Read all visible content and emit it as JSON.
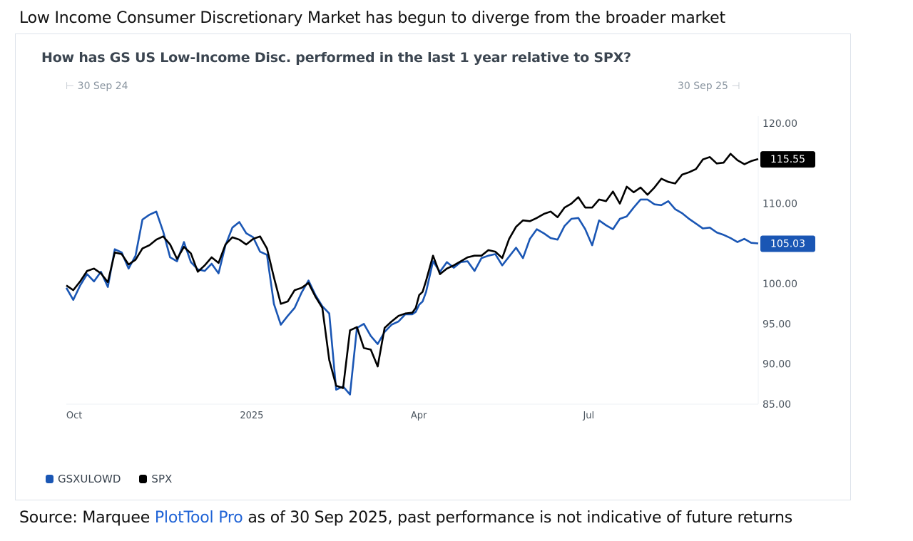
{
  "headline": "Low Income Consumer Discretionary Market has begun to diverge from the broader market",
  "card": {
    "title": "How has GS US Low-Income Disc. performed in the last 1 year relative to SPX?",
    "range_start": "30 Sep 24",
    "range_end": "30 Sep 25",
    "range_start_glyph": "⊢",
    "range_end_glyph": "⊣"
  },
  "legend": [
    {
      "label": "GSXULOWD",
      "color": "#1a56b4"
    },
    {
      "label": "SPX",
      "color": "#000000"
    }
  ],
  "source": {
    "prefix": "Source: Marquee ",
    "link": "PlotTool Pro",
    "suffix": " as of 30 Sep 2025, past performance is not indicative of future returns"
  },
  "chart_data": {
    "type": "line",
    "title": "How has GS US Low-Income Disc. performed in the last 1 year relative to SPX?",
    "xlabel": "",
    "ylabel": "",
    "x_range": [
      "2024-09-30",
      "2025-09-30"
    ],
    "ylim": [
      85,
      120
    ],
    "y_ticks": [
      "120.00",
      "110.00",
      "100.00",
      "95.00",
      "90.00",
      "85.00"
    ],
    "y_tick_values": [
      120,
      110,
      100,
      95,
      90,
      85
    ],
    "x_ticks": [
      {
        "label": "Oct",
        "t": 0.005
      },
      {
        "label": "2025",
        "t": 0.256
      },
      {
        "label": "Apr",
        "t": 0.503
      },
      {
        "label": "Jul",
        "t": 0.752
      }
    ],
    "grid": false,
    "legend_position": "bottom-left",
    "last_value_labels": [
      {
        "series": "SPX",
        "value": "115.55",
        "bg": "#000000"
      },
      {
        "series": "GSXULOWD",
        "value": "105.03",
        "bg": "#1a56b4"
      }
    ],
    "x": [
      0.0,
      0.01,
      0.02,
      0.03,
      0.04,
      0.05,
      0.06,
      0.07,
      0.08,
      0.09,
      0.1,
      0.11,
      0.12,
      0.13,
      0.14,
      0.15,
      0.16,
      0.17,
      0.18,
      0.19,
      0.2,
      0.21,
      0.22,
      0.23,
      0.24,
      0.25,
      0.26,
      0.27,
      0.28,
      0.29,
      0.3,
      0.31,
      0.32,
      0.33,
      0.34,
      0.35,
      0.36,
      0.37,
      0.38,
      0.39,
      0.4,
      0.41,
      0.42,
      0.43,
      0.44,
      0.45,
      0.46,
      0.47,
      0.48,
      0.49,
      0.5,
      0.505,
      0.51,
      0.515,
      0.52,
      0.53,
      0.54,
      0.55,
      0.56,
      0.57,
      0.58,
      0.59,
      0.6,
      0.61,
      0.62,
      0.63,
      0.64,
      0.65,
      0.66,
      0.67,
      0.68,
      0.69,
      0.7,
      0.71,
      0.72,
      0.73,
      0.74,
      0.75,
      0.76,
      0.77,
      0.78,
      0.79,
      0.8,
      0.81,
      0.82,
      0.83,
      0.84,
      0.85,
      0.86,
      0.87,
      0.88,
      0.89,
      0.9,
      0.91,
      0.92,
      0.93,
      0.94,
      0.95,
      0.96,
      0.97,
      0.98,
      0.99,
      1.0
    ],
    "series": [
      {
        "name": "GSXULOWD",
        "color": "#1a56b4",
        "values": [
          99.5,
          98.0,
          99.8,
          101.2,
          100.3,
          101.5,
          99.6,
          104.3,
          103.9,
          101.9,
          103.5,
          108.0,
          108.6,
          109.0,
          106.5,
          103.3,
          102.8,
          105.2,
          102.7,
          101.8,
          101.6,
          102.5,
          101.3,
          104.8,
          107.0,
          107.7,
          106.3,
          105.8,
          104.0,
          103.6,
          97.5,
          94.9,
          96.0,
          97.0,
          98.9,
          100.4,
          98.6,
          97.2,
          96.3,
          86.8,
          87.2,
          86.2,
          94.5,
          95.0,
          93.5,
          92.5,
          94.0,
          94.9,
          95.3,
          96.2,
          96.2,
          96.5,
          97.4,
          97.8,
          99.0,
          102.8,
          101.5,
          102.7,
          102.0,
          102.7,
          102.8,
          101.6,
          103.2,
          103.5,
          103.7,
          102.3,
          103.4,
          104.5,
          103.2,
          105.6,
          106.8,
          106.3,
          105.7,
          105.5,
          107.2,
          108.1,
          108.2,
          106.8,
          104.8,
          107.9,
          107.3,
          106.8,
          108.1,
          108.4,
          109.5,
          110.5,
          110.5,
          109.9,
          109.8,
          110.3,
          109.3,
          108.8,
          108.1,
          107.5,
          106.9,
          107.0,
          106.4,
          106.1,
          105.7,
          105.2,
          105.6,
          105.1,
          105.03
        ]
      },
      {
        "name": "SPX",
        "color": "#000000",
        "values": [
          99.8,
          99.2,
          100.3,
          101.6,
          101.9,
          101.3,
          100.2,
          103.9,
          103.7,
          102.4,
          103.0,
          104.4,
          104.8,
          105.5,
          105.9,
          104.9,
          103.1,
          104.6,
          103.8,
          101.5,
          102.3,
          103.3,
          102.6,
          104.9,
          105.8,
          105.5,
          104.9,
          105.6,
          105.9,
          104.4,
          100.8,
          97.5,
          97.8,
          99.2,
          99.5,
          100.1,
          98.4,
          97.0,
          90.5,
          87.3,
          87.0,
          94.2,
          94.6,
          92.0,
          91.8,
          89.7,
          94.5,
          95.3,
          96.0,
          96.3,
          96.4,
          97.0,
          98.6,
          99.0,
          100.4,
          103.5,
          101.2,
          101.9,
          102.3,
          102.8,
          103.3,
          103.5,
          103.5,
          104.2,
          104.0,
          103.2,
          105.6,
          107.1,
          107.9,
          107.8,
          108.2,
          108.7,
          109.0,
          108.3,
          109.5,
          110.0,
          110.8,
          109.5,
          109.5,
          110.5,
          110.3,
          111.5,
          110.0,
          112.1,
          111.4,
          112.0,
          111.1,
          112.0,
          113.1,
          112.7,
          112.5,
          113.6,
          113.9,
          114.3,
          115.5,
          115.8,
          115.0,
          115.1,
          116.2,
          115.4,
          114.9,
          115.3,
          115.55
        ]
      }
    ]
  }
}
